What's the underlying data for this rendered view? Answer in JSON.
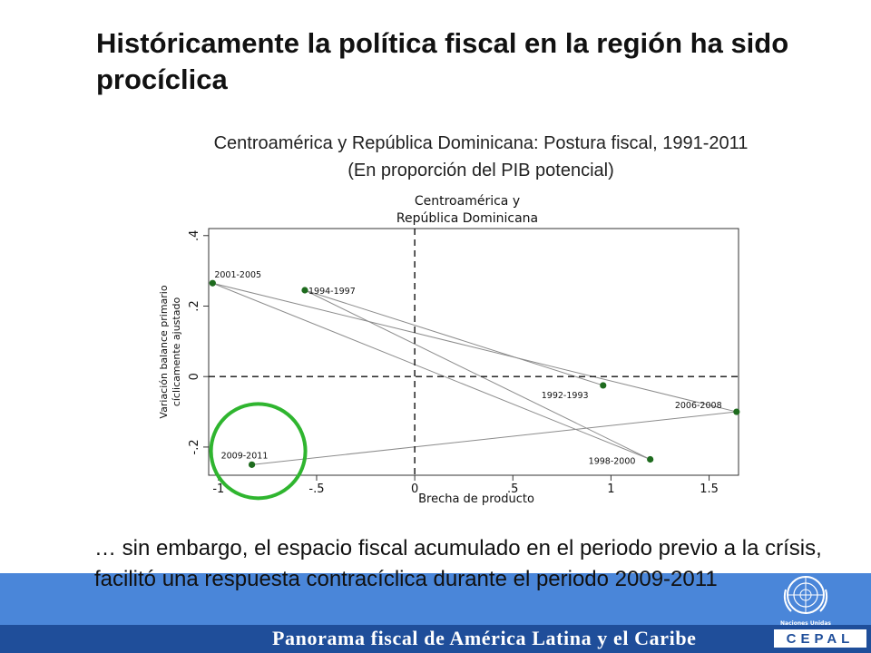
{
  "slide": {
    "title": "Históricamente la política fiscal en la región ha sido procíclica",
    "subtitle_line1": "Centroamérica y República Dominicana: Postura fiscal, 1991-2011",
    "subtitle_line2": "(En proporción del PIB potencial)",
    "bottom_text": "… sin embargo, el espacio fiscal acumulado en el periodo previo a la crísis, facilitó una respuesta contracíclica durante el periodo 2009-2011",
    "footer": "Panorama fiscal de América Latina y el Caribe",
    "footer_logo": "CEPAL",
    "emblem_label": "Naciones Unidas",
    "colors": {
      "band": "#4a86d9",
      "band_dark": "#1f4e9a",
      "marker": "#1e6b1e",
      "highlight": "#2fb52f"
    }
  },
  "chart_data": {
    "type": "scatter",
    "title_line1": "Centroamérica y",
    "title_line2": "República Dominicana",
    "xlabel": "Brecha de producto",
    "ylabel_line1": "Variación balance primario",
    "ylabel_line2": "cíclicamente ajustado",
    "xlim": [
      -1.05,
      1.65
    ],
    "ylim": [
      -0.28,
      0.42
    ],
    "x_ticks": [
      -1,
      -0.5,
      0,
      0.5,
      1,
      1.5
    ],
    "x_tick_labels": [
      "-1",
      "-.5",
      "0",
      ".5",
      "1",
      "1.5"
    ],
    "y_ticks": [
      -0.2,
      0,
      0.2,
      0.4
    ],
    "y_tick_labels": [
      "-.2",
      "0",
      ".2",
      ".4"
    ],
    "reference_lines": {
      "x": 0,
      "y": 0,
      "style": "dashed"
    },
    "points": [
      {
        "label": "1992-1993",
        "x": 0.96,
        "y": -0.025
      },
      {
        "label": "1994-1997",
        "x": -0.56,
        "y": 0.245
      },
      {
        "label": "1998-2000",
        "x": 1.2,
        "y": -0.235
      },
      {
        "label": "2001-2005",
        "x": -1.03,
        "y": 0.265
      },
      {
        "label": "2006-2008",
        "x": 1.64,
        "y": -0.1
      },
      {
        "label": "2009-2011",
        "x": -0.83,
        "y": -0.25
      }
    ],
    "connections": [
      [
        "1992-1993",
        "1994-1997"
      ],
      [
        "1994-1997",
        "1998-2000"
      ],
      [
        "1998-2000",
        "2001-2005"
      ],
      [
        "2001-2005",
        "2006-2008"
      ],
      [
        "2006-2008",
        "2009-2011"
      ]
    ],
    "highlight": "2009-2011",
    "grid": false
  }
}
